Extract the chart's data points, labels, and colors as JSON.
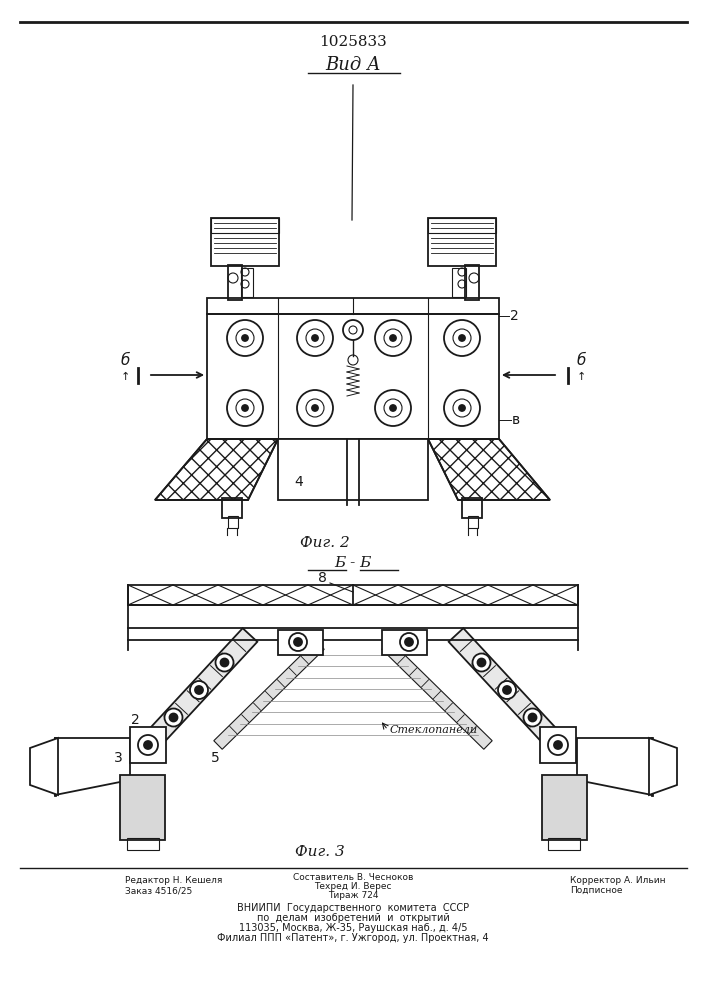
{
  "patent_number": "1025833",
  "view_label": "Вид А",
  "fig2_label": "Фиг. 2",
  "fig3_label": "Фиг. 3",
  "section_label": "Б - Б",
  "line_color": "#1a1a1a",
  "footer_editor": "Редактор Н. Кешеля",
  "footer_tech": "Техред И. Верес",
  "footer_author": "Составитель В. Чесноков",
  "footer_order": "Заказ 4516/25",
  "footer_print": "Тираж 724",
  "footer_corrector": "Корректор А. Ильин",
  "footer_sub": "Подписное",
  "footer_org1": "ВНИИПИ  Государственного  комитета  СССР",
  "footer_org2": "по  делам  изобретений  и  открытий",
  "footer_addr1": "113035, Москва, Ж-35, Раушская наб., д. 4/5",
  "footer_addr2": "Филиал ППП «Патент», г. Ужгород, ул. Проектная, 4"
}
